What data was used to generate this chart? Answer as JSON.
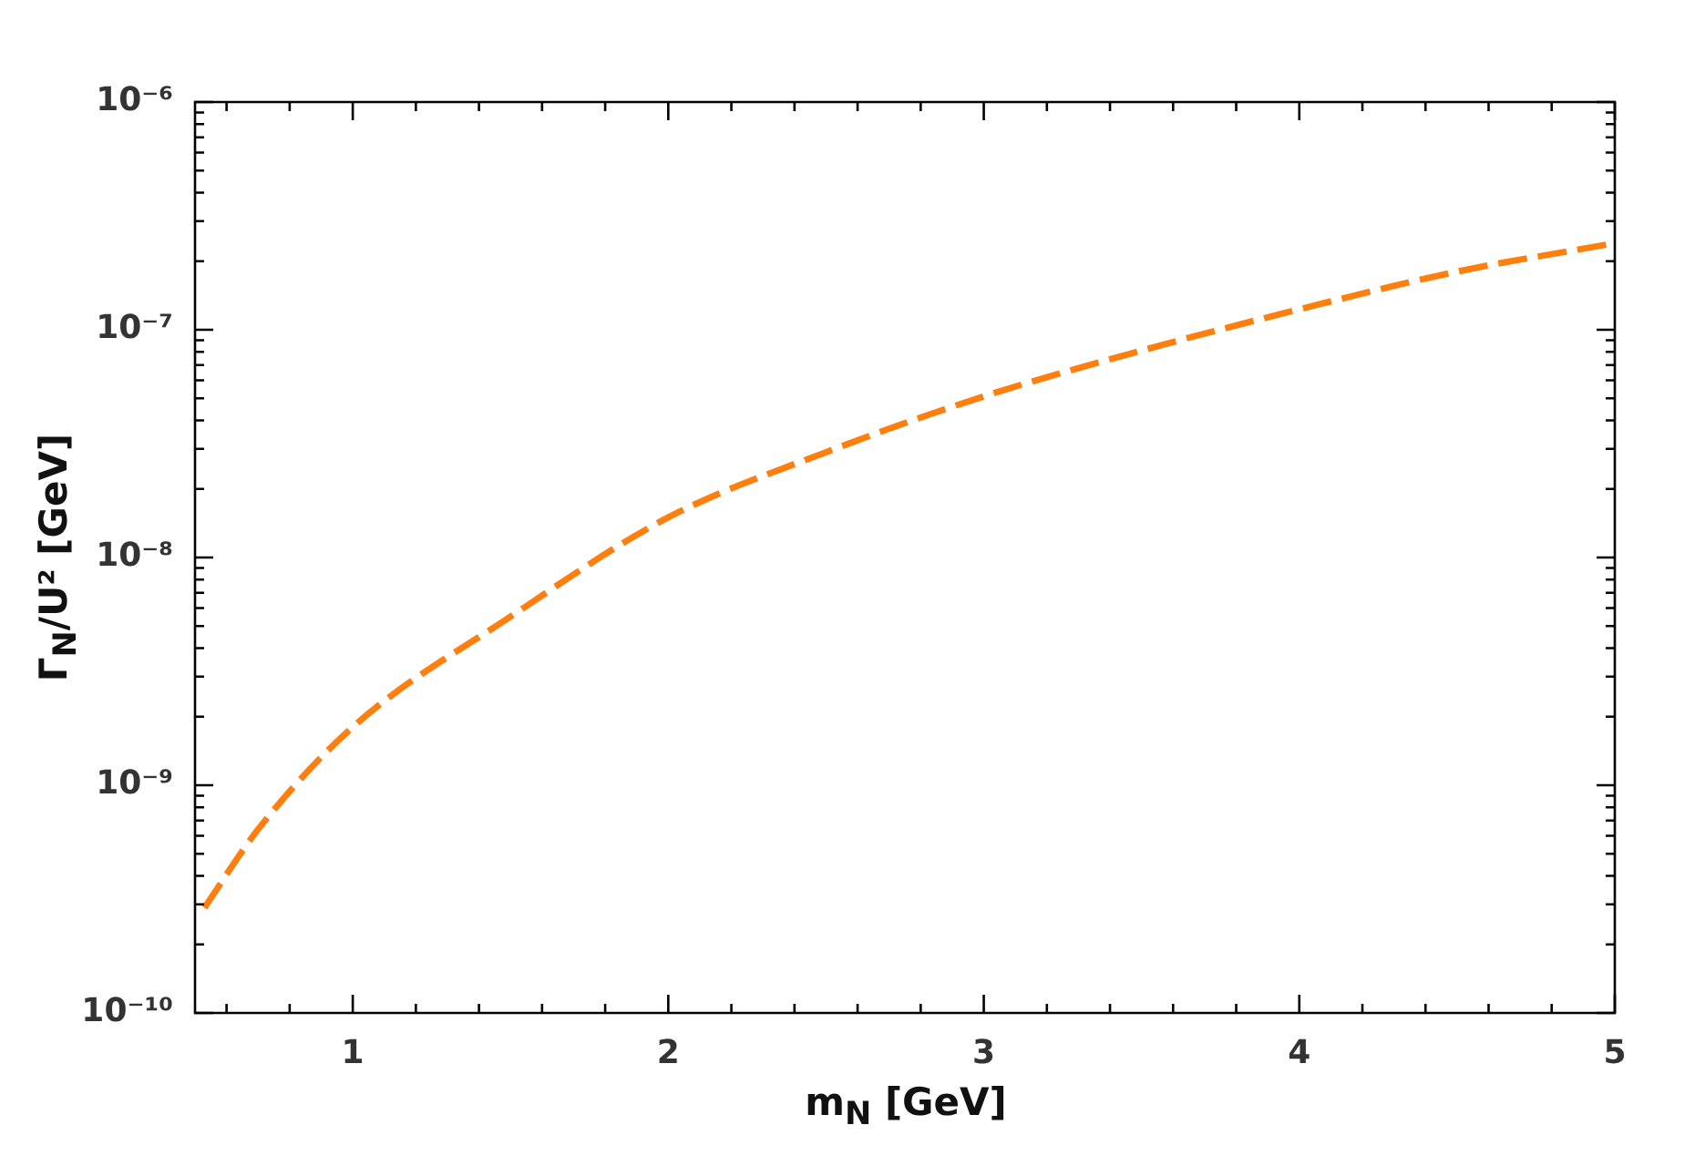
{
  "chart_data": {
    "type": "line",
    "xlabel": "m$_{N}$ [GeV]",
    "ylabel": "Γ$_{N}$/U² [GeV]",
    "log": "y",
    "grid": false,
    "legend": false,
    "marker": "none",
    "line_style": "dashed",
    "xlim": [
      0.5,
      5
    ],
    "ylim": [
      1e-10,
      1e-06
    ],
    "xticks": [
      {
        "value": 0.6,
        "label": null
      },
      {
        "value": 0.8,
        "label": null
      },
      1,
      {
        "value": 1.2,
        "label": null
      },
      {
        "value": 1.4,
        "label": null
      },
      {
        "value": 1.6,
        "label": null
      },
      {
        "value": 1.8,
        "label": null
      },
      2,
      {
        "value": 2.2,
        "label": null
      },
      {
        "value": 2.4,
        "label": null
      },
      {
        "value": 2.6,
        "label": null
      },
      {
        "value": 2.8,
        "label": null
      },
      3,
      {
        "value": 3.2,
        "label": null
      },
      {
        "value": 3.4,
        "label": null
      },
      {
        "value": 3.6,
        "label": null
      },
      {
        "value": 3.8,
        "label": null
      },
      4,
      {
        "value": 4.2,
        "label": null
      },
      {
        "value": 4.4,
        "label": null
      },
      {
        "value": 4.6,
        "label": null
      },
      {
        "value": 4.8,
        "label": null
      },
      5
    ],
    "yticks": [
      {
        "value": 1e-10,
        "label": "10⁻¹⁰"
      },
      {
        "value": 2e-10,
        "label": null
      },
      {
        "value": 3e-10,
        "label": null
      },
      {
        "value": 4e-10,
        "label": null
      },
      {
        "value": 5e-10,
        "label": null
      },
      {
        "value": 6e-10,
        "label": null
      },
      {
        "value": 7e-10,
        "label": null
      },
      {
        "value": 8e-10,
        "label": null
      },
      {
        "value": 9e-10,
        "label": null
      },
      {
        "value": 1e-09,
        "label": "10⁻⁹"
      },
      {
        "value": 2e-09,
        "label": null
      },
      {
        "value": 3e-09,
        "label": null
      },
      {
        "value": 4e-09,
        "label": null
      },
      {
        "value": 5e-09,
        "label": null
      },
      {
        "value": 6e-09,
        "label": null
      },
      {
        "value": 7e-09,
        "label": null
      },
      {
        "value": 8e-09,
        "label": null
      },
      {
        "value": 9e-09,
        "label": null
      },
      {
        "value": 1e-08,
        "label": "10⁻⁸"
      },
      {
        "value": 2e-08,
        "label": null
      },
      {
        "value": 3e-08,
        "label": null
      },
      {
        "value": 4e-08,
        "label": null
      },
      {
        "value": 5e-08,
        "label": null
      },
      {
        "value": 6e-08,
        "label": null
      },
      {
        "value": 7e-08,
        "label": null
      },
      {
        "value": 8e-08,
        "label": null
      },
      {
        "value": 9e-08,
        "label": null
      },
      {
        "value": 1e-07,
        "label": "10⁻⁷"
      },
      {
        "value": 2e-07,
        "label": null
      },
      {
        "value": 3e-07,
        "label": null
      },
      {
        "value": 4e-07,
        "label": null
      },
      {
        "value": 5e-07,
        "label": null
      },
      {
        "value": 6e-07,
        "label": null
      },
      {
        "value": 7e-07,
        "label": null
      },
      {
        "value": 8e-07,
        "label": null
      },
      {
        "value": 9e-07,
        "label": null
      },
      {
        "value": 1e-06,
        "label": "10⁻⁶"
      }
    ],
    "series": [
      {
        "color": "#ff7f0e",
        "x": [
          0.53,
          0.7,
          1,
          1.5,
          2,
          2.5,
          3,
          3.5,
          4,
          4.5,
          5
        ],
        "values": [
          2.9e-10,
          6.4e-10,
          1.8e-09,
          5.5e-09,
          1.5e-08,
          2.9e-08,
          5.1e-08,
          8.1e-08,
          1.23e-07,
          1.8e-07,
          2.4e-07
        ]
      }
    ]
  }
}
